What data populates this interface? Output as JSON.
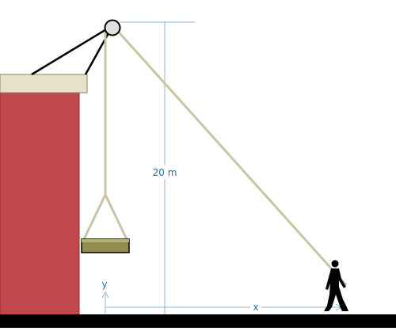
{
  "diagram": {
    "labels": {
      "height": "20 m",
      "horizontal": "x",
      "vertical": "y"
    },
    "colors": {
      "building": "#c0474b",
      "roof": "#e8e2c8",
      "rope": "#c8c4a4",
      "platform": "#948d52",
      "ground": "#000000",
      "dimension": "#1f6fb2",
      "pulley": "#e0e0e0",
      "person": "#000000"
    }
  }
}
